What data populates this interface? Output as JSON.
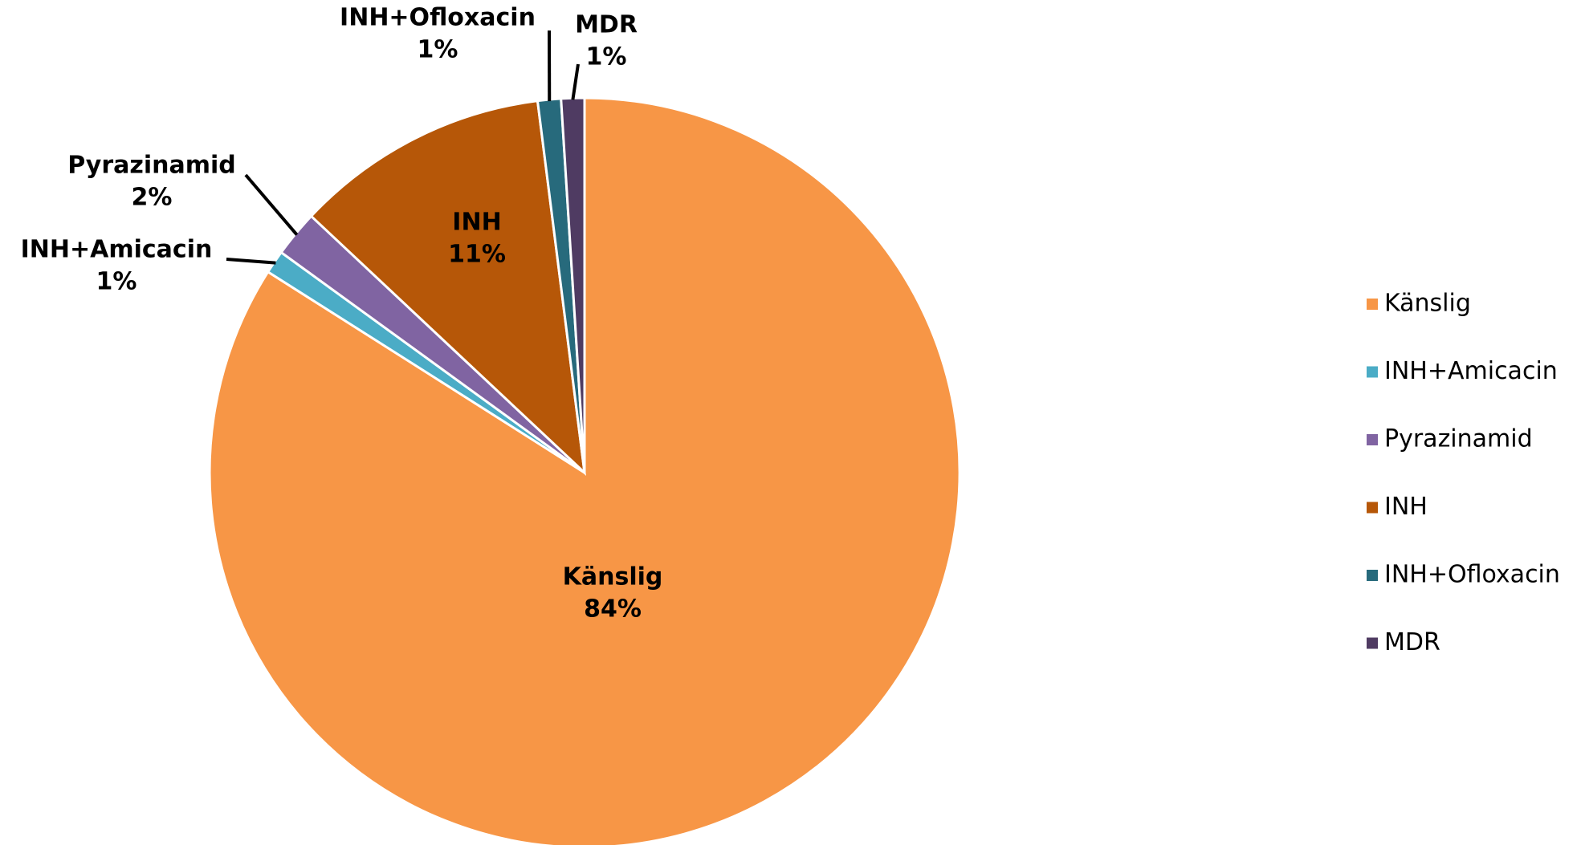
{
  "chart_data": {
    "type": "pie",
    "categories": [
      "Känslig",
      "INH+Amicacin",
      "Pyrazinamid",
      "INH",
      "INH+Ofloxacin",
      "MDR"
    ],
    "values": [
      84,
      1,
      2,
      11,
      1,
      1
    ],
    "value_labels": [
      "84%",
      "1%",
      "2%",
      "11%",
      "1%",
      "1%"
    ],
    "colors": [
      "#f79646",
      "#4bacc6",
      "#8064a2",
      "#b65708",
      "#276a7c",
      "#4f3b62"
    ],
    "legend": "right"
  }
}
